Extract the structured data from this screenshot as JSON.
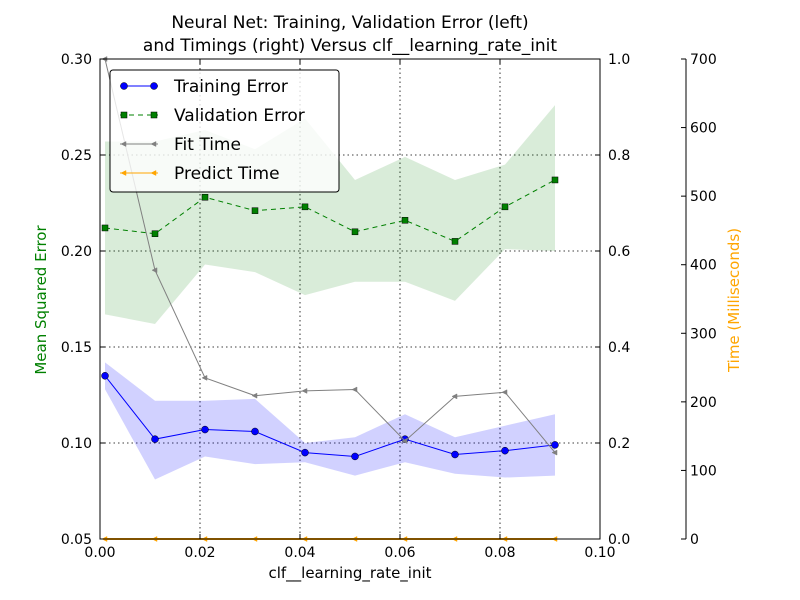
{
  "chart_data": {
    "type": "line",
    "title_line1": "Neural Net: Training, Validation Error (left)",
    "title_line2": "and Timings (right) Versus clf__learning_rate_init",
    "xlabel": "clf__learning_rate_init",
    "ylabel_left": "Mean Squared Error",
    "ylabel_right": "Time (Milliseconds)",
    "xlim": [
      0.0,
      0.1
    ],
    "ylim_left": [
      0.05,
      0.3
    ],
    "ylim_mid": [
      0.0,
      1.0
    ],
    "ylim_right": [
      0,
      700
    ],
    "x_ticks": [
      "0.00",
      "0.02",
      "0.04",
      "0.06",
      "0.08",
      "0.10"
    ],
    "y_ticks_left": [
      "0.05",
      "0.10",
      "0.15",
      "0.20",
      "0.25",
      "0.30"
    ],
    "y_ticks_mid": [
      "0.0",
      "0.2",
      "0.4",
      "0.6",
      "0.8",
      "1.0"
    ],
    "y_ticks_right": [
      "0",
      "100",
      "200",
      "300",
      "400",
      "500",
      "600",
      "700"
    ],
    "grid": true,
    "legend_position": "top-left",
    "x": [
      0.001,
      0.011,
      0.021,
      0.031,
      0.041,
      0.051,
      0.061,
      0.071,
      0.081,
      0.091
    ],
    "series": [
      {
        "name": "Training Error",
        "axis": "left",
        "color": "#0000ff",
        "marker": "circle",
        "values": [
          0.135,
          0.102,
          0.107,
          0.106,
          0.095,
          0.093,
          0.102,
          0.094,
          0.096,
          0.099
        ],
        "band_upper": [
          0.142,
          0.122,
          0.122,
          0.123,
          0.1,
          0.103,
          0.115,
          0.103,
          0.109,
          0.115
        ],
        "band_lower": [
          0.128,
          0.081,
          0.093,
          0.089,
          0.09,
          0.083,
          0.09,
          0.084,
          0.082,
          0.083
        ]
      },
      {
        "name": "Validation Error",
        "axis": "left",
        "color": "#008000",
        "marker": "square",
        "values": [
          0.212,
          0.209,
          0.228,
          0.221,
          0.223,
          0.21,
          0.216,
          0.205,
          0.223,
          0.237
        ],
        "band_upper": [
          0.257,
          0.257,
          0.263,
          0.253,
          0.269,
          0.237,
          0.249,
          0.237,
          0.245,
          0.276
        ],
        "band_lower": [
          0.167,
          0.162,
          0.193,
          0.189,
          0.177,
          0.184,
          0.184,
          0.174,
          0.201,
          0.2
        ]
      },
      {
        "name": "Fit Time",
        "axis": "right",
        "color": "#808080",
        "marker": "tri",
        "values": [
          700,
          392,
          235,
          209,
          216,
          218,
          143,
          208,
          214,
          126
        ]
      },
      {
        "name": "Predict Time",
        "axis": "right",
        "color": "#ffa500",
        "marker": "tri",
        "values": [
          0,
          0,
          0,
          0,
          0,
          0,
          0,
          0,
          0,
          0
        ]
      }
    ]
  }
}
